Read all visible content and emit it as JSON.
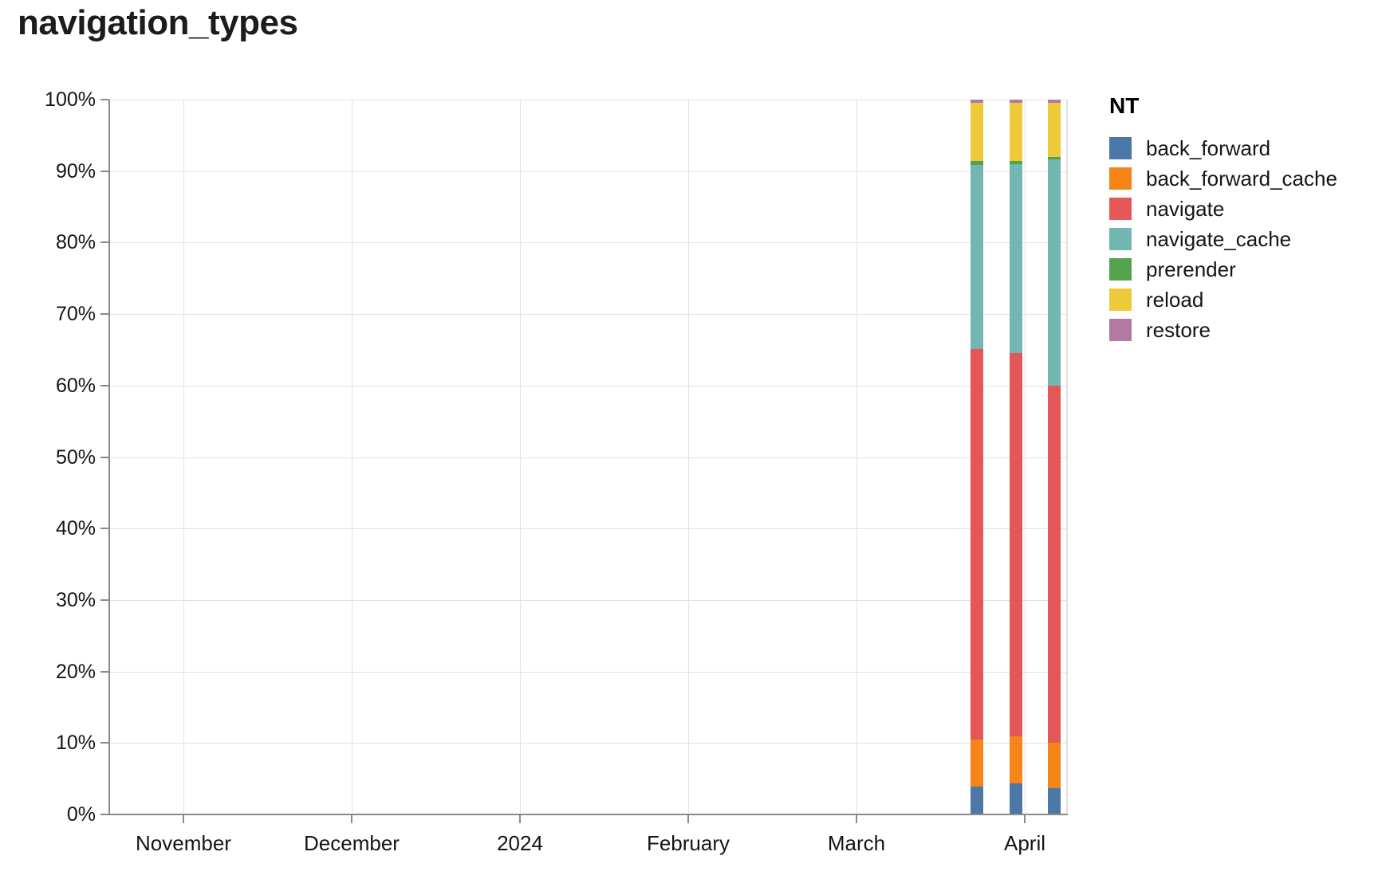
{
  "title": "navigation_types",
  "chart_data": {
    "type": "bar",
    "stacked": true,
    "normalized": true,
    "title": "navigation_types",
    "categories": [
      "2024-03-24 (approx)",
      "2024-03-31 (approx)",
      "2024-04-07 (approx)"
    ],
    "series": [
      {
        "name": "back_forward",
        "color": "#4c78a8",
        "values": [
          3.9,
          4.3,
          3.7
        ]
      },
      {
        "name": "back_forward_cache",
        "color": "#f58518",
        "values": [
          6.6,
          6.6,
          6.3
        ]
      },
      {
        "name": "navigate",
        "color": "#e45756",
        "values": [
          54.6,
          53.7,
          50.0
        ]
      },
      {
        "name": "navigate_cache",
        "color": "#72b7b2",
        "values": [
          25.8,
          26.4,
          31.6
        ]
      },
      {
        "name": "prerender",
        "color": "#54a24b",
        "values": [
          0.5,
          0.4,
          0.4
        ]
      },
      {
        "name": "reload",
        "color": "#eeca3b",
        "values": [
          8.2,
          8.2,
          7.6
        ]
      },
      {
        "name": "restore",
        "color": "#b279a2",
        "values": [
          0.4,
          0.4,
          0.4
        ]
      }
    ],
    "x_axis": {
      "type": "time",
      "tick_labels": [
        "November",
        "December",
        "2024",
        "February",
        "March",
        "April"
      ]
    },
    "y_axis": {
      "unit": "%",
      "ylim": [
        0,
        100
      ],
      "tick_labels": [
        "100%",
        "90%",
        "80%",
        "70%",
        "60%",
        "50%",
        "40%",
        "30%",
        "20%",
        "10%",
        "0%"
      ]
    },
    "grid": true,
    "legend": {
      "position": "right",
      "title": "NT",
      "entries": [
        {
          "label": "back_forward",
          "color": "#4c78a8"
        },
        {
          "label": "back_forward_cache",
          "color": "#f58518"
        },
        {
          "label": "navigate",
          "color": "#e45756"
        },
        {
          "label": "navigate_cache",
          "color": "#72b7b2"
        },
        {
          "label": "prerender",
          "color": "#54a24b"
        },
        {
          "label": "reload",
          "color": "#eeca3b"
        },
        {
          "label": "restore",
          "color": "#b279a2"
        }
      ]
    }
  }
}
